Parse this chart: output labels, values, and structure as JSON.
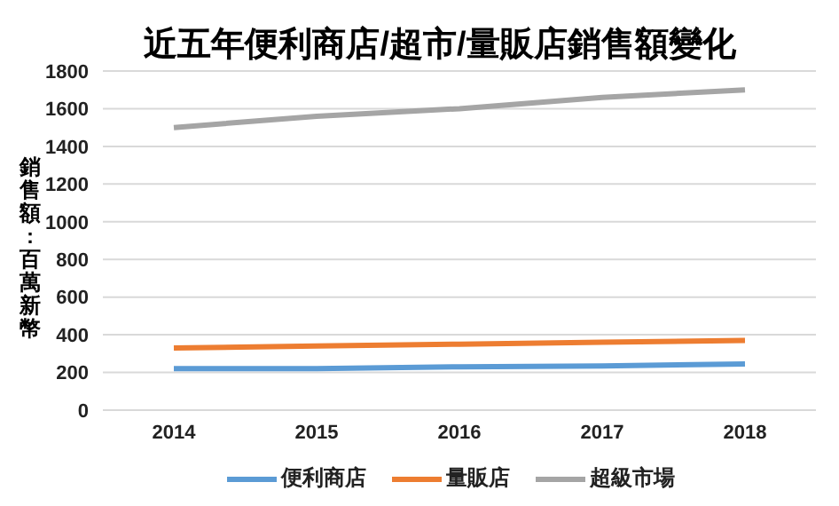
{
  "chart_data": {
    "type": "line",
    "title": "近五年便利商店/超市/量販店銷售額變化",
    "ylabel": "銷售額:百萬新幣",
    "categories": [
      "2014",
      "2015",
      "2016",
      "2017",
      "2018"
    ],
    "series": [
      {
        "name": "便利商店",
        "color": "#5b9bd5",
        "values": [
          220,
          220,
          230,
          235,
          245
        ]
      },
      {
        "name": "量販店",
        "color": "#ed7d31",
        "values": [
          330,
          340,
          350,
          360,
          370
        ]
      },
      {
        "name": "超級市場",
        "color": "#a5a5a5",
        "values": [
          1500,
          1560,
          1600,
          1660,
          1700
        ]
      }
    ],
    "ylim": [
      0,
      1800
    ],
    "yticks": [
      0,
      200,
      400,
      600,
      800,
      1000,
      1200,
      1400,
      1600,
      1800
    ],
    "grid": "y",
    "legend": "bottom",
    "marker": "none",
    "line_style": "solid"
  }
}
